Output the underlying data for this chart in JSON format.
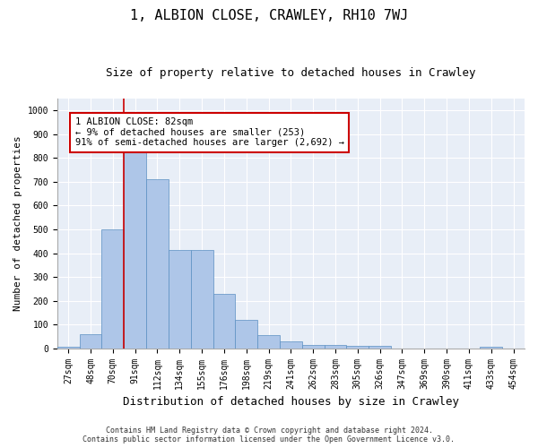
{
  "title": "1, ALBION CLOSE, CRAWLEY, RH10 7WJ",
  "subtitle": "Size of property relative to detached houses in Crawley",
  "xlabel": "Distribution of detached houses by size in Crawley",
  "ylabel": "Number of detached properties",
  "categories": [
    "27sqm",
    "48sqm",
    "70sqm",
    "91sqm",
    "112sqm",
    "134sqm",
    "155sqm",
    "176sqm",
    "198sqm",
    "219sqm",
    "241sqm",
    "262sqm",
    "283sqm",
    "305sqm",
    "326sqm",
    "347sqm",
    "369sqm",
    "390sqm",
    "411sqm",
    "433sqm",
    "454sqm"
  ],
  "values": [
    5,
    60,
    500,
    825,
    710,
    415,
    415,
    228,
    118,
    55,
    30,
    13,
    13,
    10,
    10,
    0,
    0,
    0,
    0,
    8,
    0
  ],
  "bar_color": "#aec6e8",
  "bar_edge_color": "#5a8fc2",
  "vline_color": "#cc0000",
  "annotation_text": "1 ALBION CLOSE: 82sqm\n← 9% of detached houses are smaller (253)\n91% of semi-detached houses are larger (2,692) →",
  "annotation_box_color": "#ffffff",
  "annotation_box_edge": "#cc0000",
  "ylim": [
    0,
    1050
  ],
  "yticks": [
    0,
    100,
    200,
    300,
    400,
    500,
    600,
    700,
    800,
    900,
    1000
  ],
  "background_color": "#e8eef7",
  "footer_line1": "Contains HM Land Registry data © Crown copyright and database right 2024.",
  "footer_line2": "Contains public sector information licensed under the Open Government Licence v3.0.",
  "title_fontsize": 11,
  "subtitle_fontsize": 9,
  "xlabel_fontsize": 9,
  "ylabel_fontsize": 8,
  "tick_fontsize": 7,
  "footer_fontsize": 6,
  "annotation_fontsize": 7.5
}
